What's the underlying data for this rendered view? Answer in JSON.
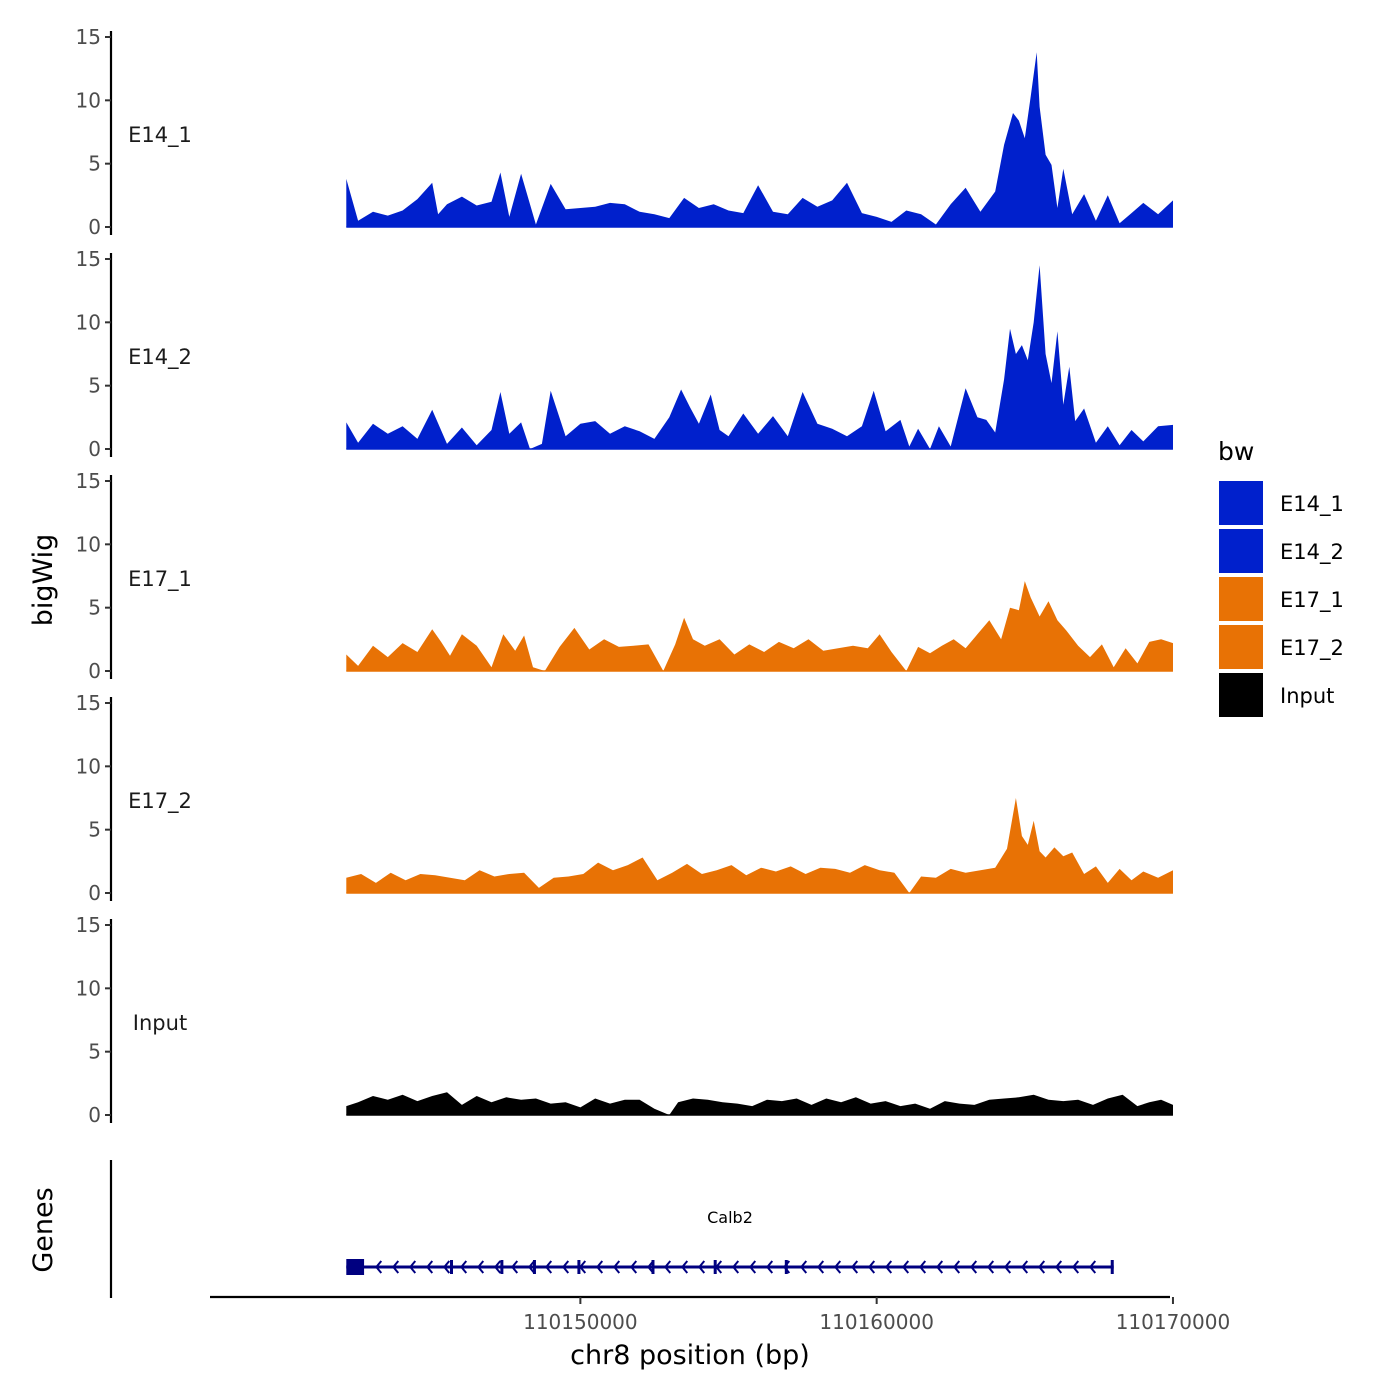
{
  "chart_data": {
    "type": "area",
    "description_title": "",
    "xlabel": "chr8 position (bp)",
    "ylabel": "bigWig",
    "gene_track_label": "Genes",
    "xlim": [
      110137500,
      110169900
    ],
    "x_ticks": [
      110150000,
      110160000,
      110170000
    ],
    "x_tick_labels": [
      "110150000",
      "110160000",
      "110170000"
    ],
    "ylim": [
      0,
      15
    ],
    "y_ticks": [
      0,
      5,
      10,
      15
    ],
    "y_tick_labels": [
      "0",
      "5",
      "10",
      "15"
    ],
    "legend": {
      "title": "bw",
      "items": [
        {
          "label": "E14_1",
          "color": "#0020CC"
        },
        {
          "label": "E14_2",
          "color": "#0020CC"
        },
        {
          "label": "E17_1",
          "color": "#E87205"
        },
        {
          "label": "E17_2",
          "color": "#E87205"
        },
        {
          "label": "Input",
          "color": "#000000"
        }
      ]
    },
    "series": [
      {
        "name": "E14_1",
        "color": "#0020CC",
        "x": [
          110142100,
          110142500,
          110143000,
          110143500,
          110144000,
          110144500,
          110145000,
          110145200,
          110145500,
          110146000,
          110146500,
          110147000,
          110147300,
          110147600,
          110148000,
          110148500,
          110149000,
          110149500,
          110150000,
          110150500,
          110151000,
          110151500,
          110152000,
          110152500,
          110153000,
          110153500,
          110154000,
          110154500,
          110155000,
          110155500,
          110156000,
          110156500,
          110157000,
          110157500,
          110158000,
          110158500,
          110159000,
          110159500,
          110160000,
          110160500,
          110161000,
          110161500,
          110162000,
          110162500,
          110163000,
          110163500,
          110164000,
          110164300,
          110164600,
          110164800,
          110165000,
          110165200,
          110165400,
          110165500,
          110165700,
          110165900,
          110166100,
          110166300,
          110166600,
          110167000,
          110167400,
          110167800,
          110168200,
          110168600,
          110169000,
          110169500,
          110170000
        ],
        "y": [
          3.8,
          0.5,
          1.2,
          0.9,
          1.3,
          2.2,
          3.5,
          1.0,
          1.8,
          2.4,
          1.7,
          2.0,
          4.3,
          0.8,
          4.2,
          0.2,
          3.4,
          1.4,
          1.5,
          1.6,
          1.9,
          1.8,
          1.2,
          1.0,
          0.7,
          2.3,
          1.5,
          1.8,
          1.3,
          1.1,
          3.3,
          1.2,
          1.0,
          2.3,
          1.6,
          2.1,
          3.5,
          1.1,
          0.8,
          0.4,
          1.3,
          1.0,
          0.2,
          1.8,
          3.1,
          1.2,
          2.8,
          6.5,
          9.0,
          8.4,
          7.0,
          10.3,
          13.8,
          9.5,
          5.7,
          4.9,
          1.5,
          4.6,
          1.0,
          2.6,
          0.5,
          2.5,
          0.3,
          1.1,
          1.9,
          1.0,
          2.1
        ]
      },
      {
        "name": "E14_2",
        "color": "#0020CC",
        "x": [
          110142100,
          110142500,
          110143000,
          110143500,
          110144000,
          110144500,
          110145000,
          110145500,
          110146000,
          110146500,
          110147000,
          110147300,
          110147600,
          110148000,
          110148300,
          110148700,
          110149000,
          110149500,
          110150000,
          110150500,
          110151000,
          110151500,
          110152000,
          110152500,
          110153000,
          110153400,
          110153700,
          110154000,
          110154400,
          110154700,
          110155000,
          110155500,
          110156000,
          110156500,
          110157000,
          110157500,
          110158000,
          110158500,
          110159000,
          110159500,
          110159900,
          110160300,
          110160800,
          110161100,
          110161400,
          110161800,
          110162100,
          110162500,
          110163000,
          110163400,
          110163700,
          110164000,
          110164300,
          110164500,
          110164700,
          110164900,
          110165100,
          110165300,
          110165500,
          110165700,
          110165900,
          110166100,
          110166300,
          110166500,
          110166700,
          110167000,
          110167400,
          110167800,
          110168200,
          110168600,
          110169000,
          110169500,
          110170000
        ],
        "y": [
          2.1,
          0.5,
          2.0,
          1.2,
          1.8,
          0.8,
          3.1,
          0.4,
          1.7,
          0.3,
          1.5,
          4.5,
          1.2,
          2.1,
          0.0,
          0.4,
          4.6,
          1.0,
          2.0,
          2.2,
          1.2,
          1.8,
          1.4,
          0.8,
          2.5,
          4.7,
          3.3,
          2.0,
          4.3,
          1.5,
          1.0,
          2.8,
          1.2,
          2.6,
          1.0,
          4.5,
          2.0,
          1.6,
          1.0,
          1.8,
          4.6,
          1.4,
          2.3,
          0.2,
          1.6,
          0.0,
          1.8,
          0.2,
          4.8,
          2.5,
          2.3,
          1.3,
          5.5,
          9.5,
          7.5,
          8.2,
          7.0,
          10.0,
          14.5,
          7.5,
          5.2,
          9.3,
          3.5,
          6.5,
          2.2,
          3.2,
          0.5,
          1.8,
          0.3,
          1.5,
          0.6,
          1.8,
          1.9
        ]
      },
      {
        "name": "E17_1",
        "color": "#E87205",
        "x": [
          110142100,
          110142500,
          110143000,
          110143500,
          110144000,
          110144500,
          110145000,
          110145300,
          110145600,
          110146000,
          110146500,
          110147000,
          110147400,
          110147800,
          110148100,
          110148400,
          110148800,
          110149300,
          110149800,
          110150300,
          110150800,
          110151300,
          110151800,
          110152300,
          110152800,
          110153200,
          110153500,
          110153800,
          110154200,
          110154700,
          110155200,
          110155700,
          110156200,
          110156700,
          110157200,
          110157700,
          110158200,
          110158700,
          110159200,
          110159700,
          110160100,
          110160500,
          110161000,
          110161400,
          110161800,
          110162200,
          110162600,
          110163000,
          110163400,
          110163800,
          110164200,
          110164500,
          110164800,
          110165000,
          110165200,
          110165500,
          110165800,
          110166100,
          110166400,
          110166800,
          110167200,
          110167600,
          110168000,
          110168400,
          110168800,
          110169200,
          110169600,
          110170000
        ],
        "y": [
          1.3,
          0.4,
          2.0,
          1.1,
          2.2,
          1.5,
          3.3,
          2.3,
          1.2,
          2.9,
          2.0,
          0.3,
          2.9,
          1.6,
          2.8,
          0.3,
          0.0,
          1.9,
          3.4,
          1.7,
          2.5,
          1.9,
          2.0,
          2.1,
          0.0,
          2.1,
          4.2,
          2.5,
          2.0,
          2.5,
          1.3,
          2.1,
          1.5,
          2.3,
          1.8,
          2.5,
          1.6,
          1.8,
          2.0,
          1.8,
          2.9,
          1.5,
          0.0,
          1.9,
          1.4,
          2.0,
          2.5,
          1.8,
          2.9,
          4.0,
          2.5,
          5.0,
          4.8,
          7.1,
          5.8,
          4.3,
          5.5,
          4.0,
          3.2,
          2.0,
          1.1,
          2.1,
          0.3,
          1.8,
          0.6,
          2.3,
          2.5,
          2.2
        ]
      },
      {
        "name": "E17_2",
        "color": "#E87205",
        "x": [
          110142100,
          110142600,
          110143100,
          110143600,
          110144100,
          110144600,
          110145100,
          110145600,
          110146100,
          110146600,
          110147100,
          110147600,
          110148100,
          110148600,
          110149100,
          110149600,
          110150100,
          110150600,
          110151100,
          110151600,
          110152100,
          110152600,
          110153100,
          110153600,
          110154100,
          110154600,
          110155100,
          110155600,
          110156100,
          110156600,
          110157100,
          110157600,
          110158100,
          110158600,
          110159100,
          110159600,
          110160100,
          110160600,
          110161100,
          110161500,
          110162000,
          110162500,
          110163000,
          110163500,
          110164000,
          110164400,
          110164700,
          110164900,
          110165100,
          110165300,
          110165500,
          110165700,
          110166000,
          110166300,
          110166600,
          110167000,
          110167400,
          110167800,
          110168200,
          110168600,
          110169000,
          110169500,
          110170000
        ],
        "y": [
          1.2,
          1.5,
          0.8,
          1.6,
          1.0,
          1.5,
          1.4,
          1.2,
          1.0,
          1.8,
          1.3,
          1.5,
          1.6,
          0.4,
          1.2,
          1.3,
          1.5,
          2.4,
          1.8,
          2.2,
          2.8,
          1.0,
          1.6,
          2.3,
          1.5,
          1.8,
          2.2,
          1.4,
          2.0,
          1.7,
          2.1,
          1.5,
          2.0,
          1.9,
          1.6,
          2.2,
          1.8,
          1.6,
          0.0,
          1.3,
          1.2,
          1.9,
          1.6,
          1.8,
          2.0,
          3.5,
          7.5,
          4.5,
          3.8,
          5.7,
          3.3,
          2.8,
          3.6,
          2.9,
          3.2,
          1.5,
          2.1,
          0.8,
          1.9,
          1.0,
          1.7,
          1.2,
          1.8
        ]
      },
      {
        "name": "Input",
        "color": "#000000",
        "x": [
          110142100,
          110142500,
          110143000,
          110143500,
          110144000,
          110144500,
          110145000,
          110145500,
          110146000,
          110146500,
          110147000,
          110147500,
          110148000,
          110148500,
          110149000,
          110149500,
          110150000,
          110150500,
          110151000,
          110151500,
          110152000,
          110152500,
          110153000,
          110153300,
          110153800,
          110154300,
          110154800,
          110155300,
          110155800,
          110156300,
          110156800,
          110157300,
          110157800,
          110158300,
          110158800,
          110159300,
          110159800,
          110160300,
          110160800,
          110161300,
          110161800,
          110162300,
          110162800,
          110163300,
          110163800,
          110164300,
          110164800,
          110165300,
          110165800,
          110166300,
          110166800,
          110167300,
          110167800,
          110168300,
          110168800,
          110169200,
          110169600,
          110170000
        ],
        "y": [
          0.7,
          1.0,
          1.5,
          1.2,
          1.6,
          1.1,
          1.5,
          1.8,
          0.8,
          1.5,
          1.0,
          1.4,
          1.2,
          1.3,
          0.9,
          1.0,
          0.6,
          1.3,
          0.9,
          1.2,
          1.2,
          0.5,
          0.0,
          1.0,
          1.3,
          1.2,
          1.0,
          0.9,
          0.7,
          1.2,
          1.1,
          1.3,
          0.8,
          1.3,
          1.0,
          1.4,
          0.9,
          1.1,
          0.7,
          0.9,
          0.5,
          1.1,
          0.9,
          0.8,
          1.2,
          1.3,
          1.4,
          1.6,
          1.2,
          1.1,
          1.2,
          0.8,
          1.3,
          1.6,
          0.7,
          1.0,
          1.2,
          0.8
        ]
      }
    ],
    "gene": {
      "name": "Calb2",
      "strand": "-",
      "start": 110142100,
      "end": 110168000,
      "exons": [
        [
          110142100,
          110142700
        ],
        [
          110145600,
          110145650
        ],
        [
          110147300,
          110147350
        ],
        [
          110148400,
          110148450
        ],
        [
          110149900,
          110149950
        ],
        [
          110152400,
          110152450
        ],
        [
          110154500,
          110154550
        ],
        [
          110156900,
          110156950
        ],
        [
          110167900,
          110168000
        ]
      ]
    }
  }
}
